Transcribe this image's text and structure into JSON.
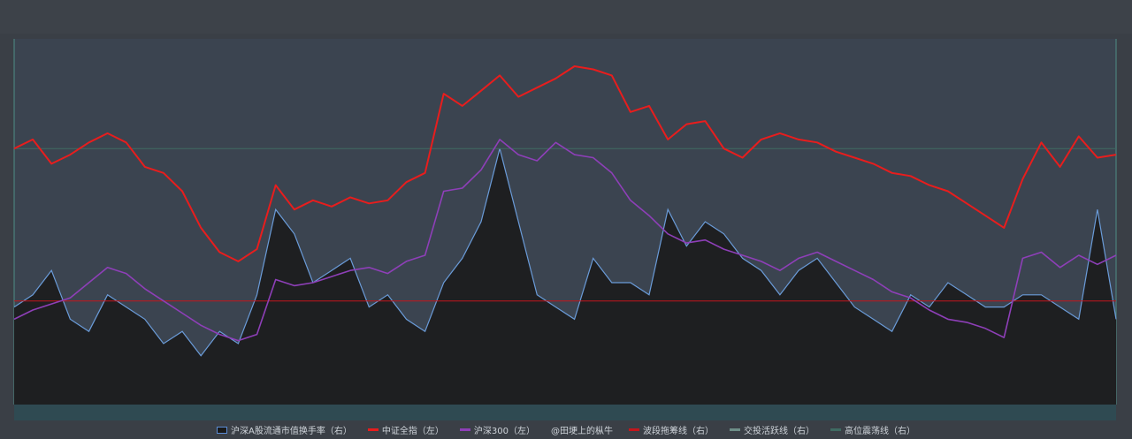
{
  "chart_data": {
    "type": "line",
    "title": "",
    "xlabel": "",
    "ylabel": "",
    "grid": false,
    "legend_position": "bottom",
    "series": [
      {
        "name": "沪深A股流通市值换手率（右）",
        "kind": "area",
        "axis": "right",
        "color": "#6a9bd8",
        "values": [
          0.8,
          0.9,
          1.1,
          0.7,
          0.6,
          0.9,
          0.8,
          0.7,
          0.5,
          0.6,
          0.4,
          0.6,
          0.5,
          0.9,
          1.6,
          1.4,
          1.0,
          1.1,
          1.2,
          0.8,
          0.9,
          0.7,
          0.6,
          1.0,
          1.2,
          1.5,
          2.1,
          1.5,
          0.9,
          0.8,
          0.7,
          1.2,
          1.0,
          1.0,
          0.9,
          1.6,
          1.3,
          1.5,
          1.4,
          1.2,
          1.1,
          0.9,
          1.1,
          1.2,
          1.0,
          0.8,
          0.7,
          0.6,
          0.9,
          0.8,
          1.0,
          0.9,
          0.8,
          0.8,
          0.9,
          0.9,
          0.8,
          0.7,
          1.6,
          0.7
        ]
      },
      {
        "name": "中证全指（左）",
        "kind": "line",
        "axis": "left",
        "color": "#e81d1d",
        "values": [
          5200,
          5350,
          4950,
          5100,
          5300,
          5450,
          5300,
          4900,
          4800,
          4500,
          3900,
          3500,
          3350,
          3550,
          4600,
          4200,
          4350,
          4250,
          4400,
          4300,
          4350,
          4650,
          4800,
          6100,
          5900,
          6150,
          6400,
          6050,
          6200,
          6350,
          6550,
          6500,
          6400,
          5800,
          5900,
          5350,
          5600,
          5650,
          5200,
          5050,
          5350,
          5450,
          5350,
          5300,
          5150,
          5050,
          4950,
          4800,
          4750,
          4600,
          4500,
          4300,
          4100,
          3900,
          4700,
          5300,
          4900,
          5400,
          5050,
          5100
        ]
      },
      {
        "name": "沪深300（左）",
        "kind": "line",
        "axis": "left",
        "color": "#8e3fb8",
        "values": [
          2400,
          2550,
          2650,
          2750,
          3000,
          3250,
          3150,
          2900,
          2700,
          2500,
          2300,
          2150,
          2050,
          2150,
          3050,
          2950,
          3000,
          3100,
          3200,
          3250,
          3150,
          3350,
          3450,
          4500,
          4550,
          4850,
          5350,
          5100,
          5000,
          5300,
          5100,
          5050,
          4800,
          4350,
          4100,
          3800,
          3650,
          3700,
          3550,
          3450,
          3350,
          3200,
          3400,
          3500,
          3350,
          3200,
          3050,
          2850,
          2750,
          2550,
          2400,
          2350,
          2250,
          2100,
          3400,
          3500,
          3250,
          3450,
          3300,
          3450
        ]
      }
    ],
    "extra_legend": [
      "@田埂上的枞牛",
      "波段拖筹线（右）",
      "交投活跃线（右）",
      "高位震荡线（右）"
    ],
    "reference_lines": [
      {
        "name": "波段拖筹线（右）",
        "value": 0.85,
        "color": "#c4161c"
      },
      {
        "name": "高位震荡线（右）",
        "value": 2.1,
        "color": "#3f6b62"
      }
    ],
    "left_ylim": [
      1000,
      7000
    ],
    "right_ylim": [
      0,
      3.0
    ]
  }
}
